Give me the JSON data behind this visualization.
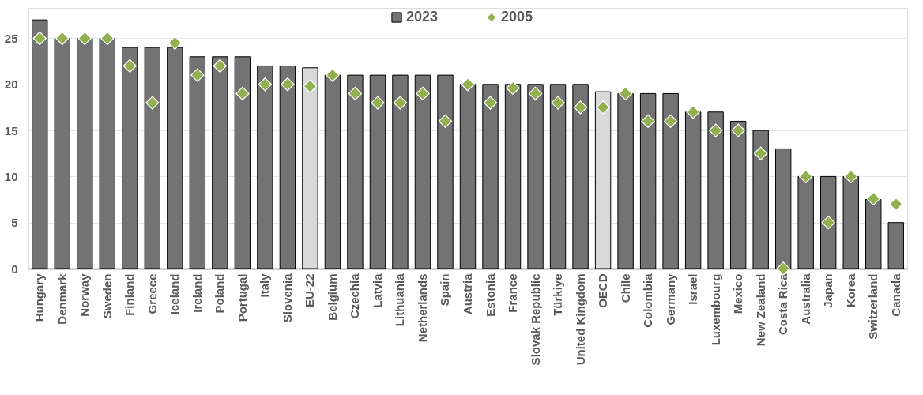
{
  "chart_data": {
    "type": "bar",
    "categories": [
      "Hungary",
      "Denmark",
      "Norway",
      "Sweden",
      "Finland",
      "Greece",
      "Iceland",
      "Ireland",
      "Poland",
      "Portugal",
      "Italy",
      "Slovenia",
      "EU-22",
      "Belgium",
      "Czechia",
      "Latvia",
      "Lithuania",
      "Netherlands",
      "Spain",
      "Austria",
      "Estonia",
      "France",
      "Slovak Republic",
      "Türkiye",
      "United Kingdom",
      "OECD",
      "Chile",
      "Colombia",
      "Germany",
      "Israel",
      "Luxembourg",
      "Mexico",
      "New Zealand",
      "Costa Rica",
      "Australia",
      "Japan",
      "Korea",
      "Switzerland",
      "Canada"
    ],
    "series": [
      {
        "name": "2023",
        "color": "#737373",
        "colors": [
          "#737373",
          "#737373",
          "#737373",
          "#737373",
          "#737373",
          "#737373",
          "#737373",
          "#737373",
          "#737373",
          "#737373",
          "#737373",
          "#737373",
          "#d9d9d9",
          "#737373",
          "#737373",
          "#737373",
          "#737373",
          "#737373",
          "#737373",
          "#737373",
          "#737373",
          "#737373",
          "#737373",
          "#737373",
          "#737373",
          "#d9d9d9",
          "#737373",
          "#737373",
          "#737373",
          "#737373",
          "#737373",
          "#737373",
          "#737373",
          "#737373",
          "#737373",
          "#737373",
          "#737373",
          "#737373",
          "#737373"
        ],
        "values": [
          27,
          25,
          25,
          25,
          24,
          24,
          24,
          23,
          23,
          23,
          22,
          22,
          21.8,
          21,
          21,
          21,
          21,
          21,
          21,
          20,
          20,
          20,
          20,
          20,
          20,
          19.2,
          19,
          19,
          19,
          17,
          17,
          16,
          15,
          13,
          10,
          10,
          10,
          7.5,
          5
        ]
      },
      {
        "name": "2005",
        "type": "scatter",
        "marker": "diamond",
        "color": "#92b050",
        "values": [
          25,
          25,
          25,
          25,
          22,
          18,
          24.5,
          21,
          22,
          19,
          20,
          20,
          19.8,
          21,
          19,
          18,
          18,
          19,
          16,
          20,
          18,
          19.6,
          19,
          18,
          17.5,
          17.5,
          19,
          16,
          16,
          17,
          15,
          15,
          12.5,
          0,
          10,
          5,
          10,
          7.6,
          7
        ]
      }
    ],
    "ylim": [
      0,
      28.3
    ],
    "yticks": [
      0,
      5,
      10,
      15,
      20,
      25
    ],
    "grid": "y",
    "legend": "top"
  }
}
